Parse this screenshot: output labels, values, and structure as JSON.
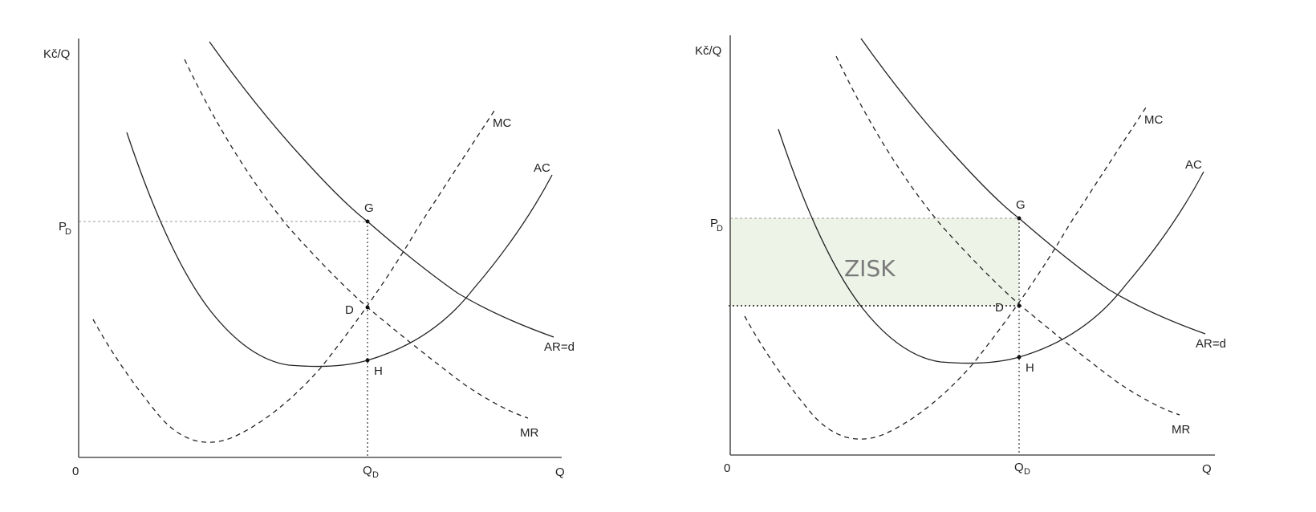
{
  "left_diagram": {
    "y_axis_label": "Kč/Q",
    "x_axis_label": "Q",
    "origin_label": "0",
    "price_label": "P",
    "price_sub": "D",
    "quantity_label": "Q",
    "quantity_sub": "D",
    "curves": {
      "mc": "MC",
      "ac": "AC",
      "ar": "AR=d",
      "mr": "MR"
    },
    "points": {
      "g": "G",
      "d": "D",
      "h": "H"
    }
  },
  "right_diagram": {
    "y_axis_label": "Kč/Q",
    "x_axis_label": "Q",
    "origin_label": "0",
    "price_label": "P",
    "price_sub": "D",
    "quantity_label": "Q",
    "quantity_sub": "D",
    "curves": {
      "mc": "MC",
      "ac": "AC",
      "ar": "AR=d",
      "mr": "MR"
    },
    "points": {
      "g": "G",
      "d": "D",
      "h": "H"
    },
    "profit_area_label": "ZISK",
    "profit_area_color": "#eef3e7"
  }
}
